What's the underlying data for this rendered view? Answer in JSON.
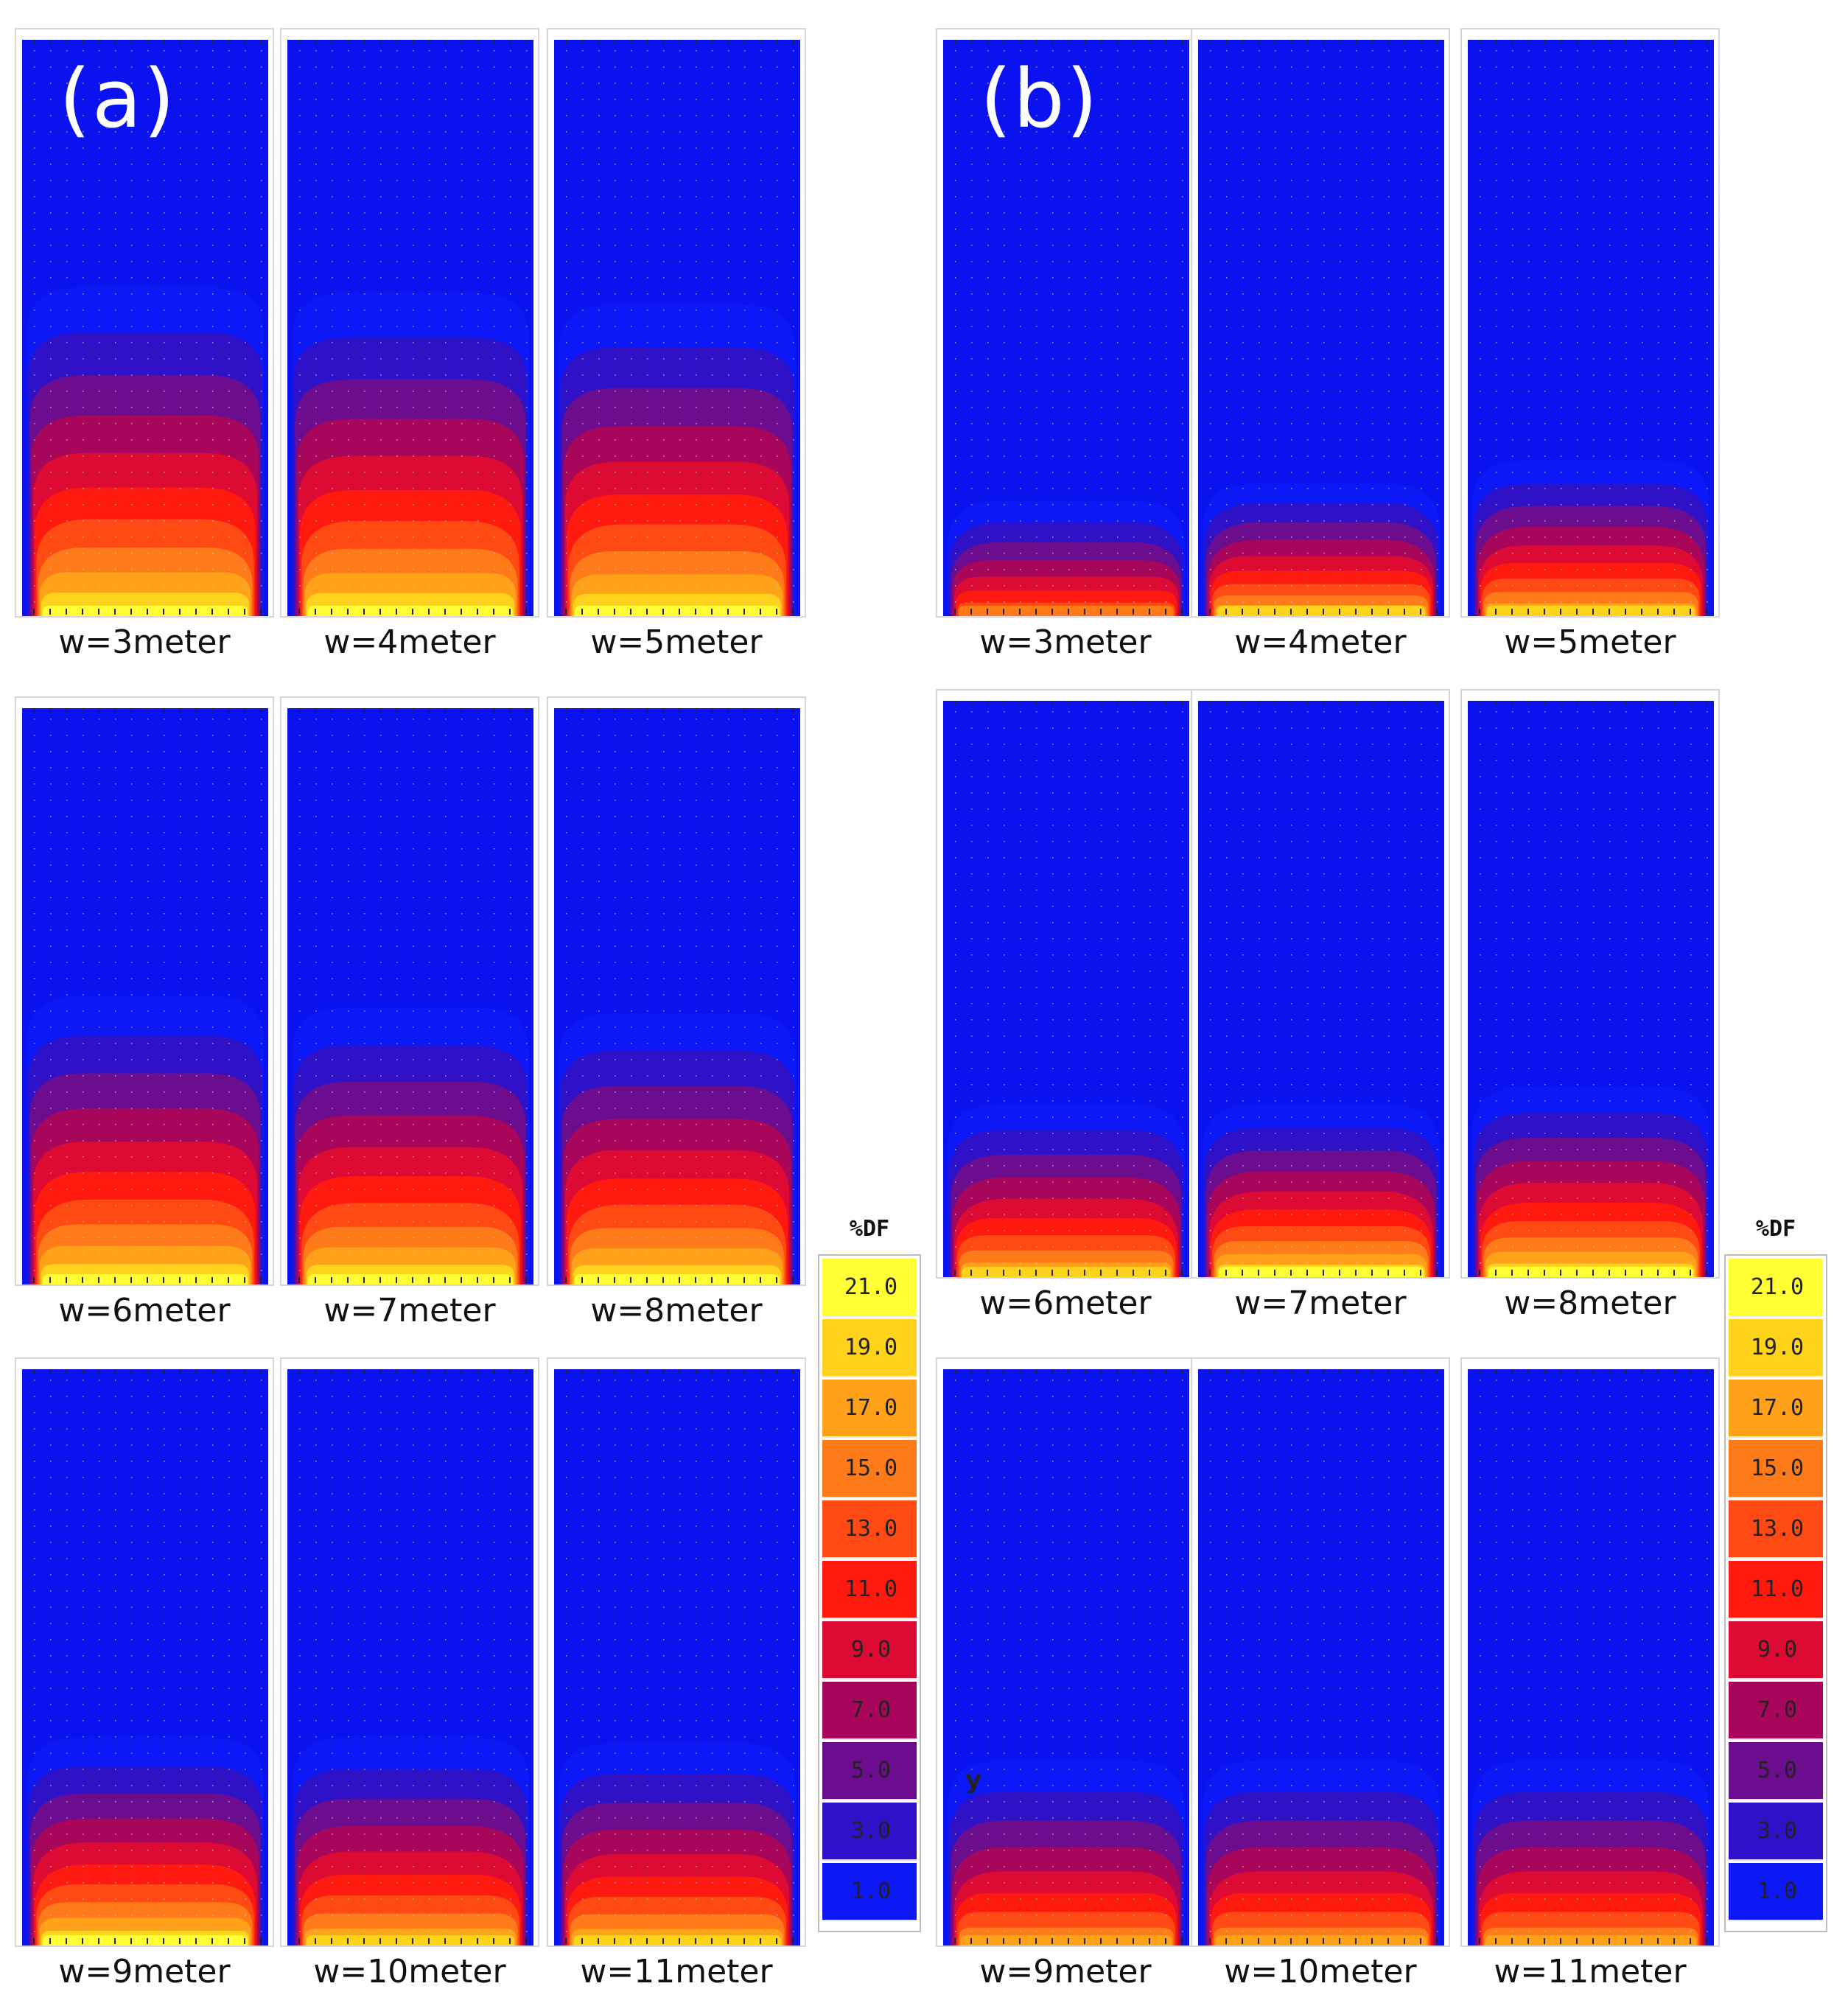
{
  "chart_data": [
    {
      "type": "heatmap",
      "panel": "(a)",
      "legend_title": "%DF",
      "legend_levels": [
        "21.0",
        "19.0",
        "17.0",
        "15.0",
        "13.0",
        "11.0",
        "9.0",
        "7.0",
        "5.0",
        "3.0",
        "1.0"
      ],
      "panels": [
        {
          "label": "w=3meter",
          "width_m": 3,
          "penetration_depth": 0.57,
          "peak_df": 21
        },
        {
          "label": "w=4meter",
          "width_m": 4,
          "penetration_depth": 0.56,
          "peak_df": 21
        },
        {
          "label": "w=5meter",
          "width_m": 5,
          "penetration_depth": 0.54,
          "peak_df": 21
        },
        {
          "label": "w=6meter",
          "width_m": 6,
          "penetration_depth": 0.5,
          "peak_df": 21
        },
        {
          "label": "w=7meter",
          "width_m": 7,
          "penetration_depth": 0.48,
          "peak_df": 21
        },
        {
          "label": "w=8meter",
          "width_m": 8,
          "penetration_depth": 0.47,
          "peak_df": 21
        },
        {
          "label": "w=9meter",
          "width_m": 9,
          "penetration_depth": 0.36,
          "peak_df": 21
        },
        {
          "label": "w=10meter",
          "width_m": 10,
          "penetration_depth": 0.36,
          "peak_df": 19
        },
        {
          "label": "w=11meter",
          "width_m": 11,
          "penetration_depth": 0.35,
          "peak_df": 19
        }
      ]
    },
    {
      "type": "heatmap",
      "panel": "(b)",
      "legend_title": "%DF",
      "legend_levels": [
        "21.0",
        "19.0",
        "17.0",
        "15.0",
        "13.0",
        "11.0",
        "9.0",
        "7.0",
        "5.0",
        "3.0",
        "1.0"
      ],
      "annotation": "y",
      "panels": [
        {
          "label": "w=3meter",
          "width_m": 3,
          "penetration_depth": 0.2,
          "peak_df": 15
        },
        {
          "label": "w=4meter",
          "width_m": 4,
          "penetration_depth": 0.23,
          "peak_df": 19
        },
        {
          "label": "w=5meter",
          "width_m": 5,
          "penetration_depth": 0.27,
          "peak_df": 19
        },
        {
          "label": "w=6meter",
          "width_m": 6,
          "penetration_depth": 0.3,
          "peak_df": 19
        },
        {
          "label": "w=7meter",
          "width_m": 7,
          "penetration_depth": 0.3,
          "peak_df": 21
        },
        {
          "label": "w=8meter",
          "width_m": 8,
          "penetration_depth": 0.33,
          "peak_df": 21
        },
        {
          "label": "w=9meter",
          "width_m": 9,
          "penetration_depth": 0.32,
          "peak_df": 17
        },
        {
          "label": "w=10meter",
          "width_m": 10,
          "penetration_depth": 0.32,
          "peak_df": 17
        },
        {
          "label": "w=11meter",
          "width_m": 11,
          "penetration_depth": 0.32,
          "peak_df": 17
        }
      ]
    }
  ],
  "colors": {
    "legend": [
      "#ffff33",
      "#ffd21c",
      "#ffa21a",
      "#ff7a18",
      "#ff4a14",
      "#ff1a10",
      "#dd0a33",
      "#a8065a",
      "#6c0c8e",
      "#2f12c8",
      "#0c18f5"
    ],
    "background": "#0a12f0"
  }
}
